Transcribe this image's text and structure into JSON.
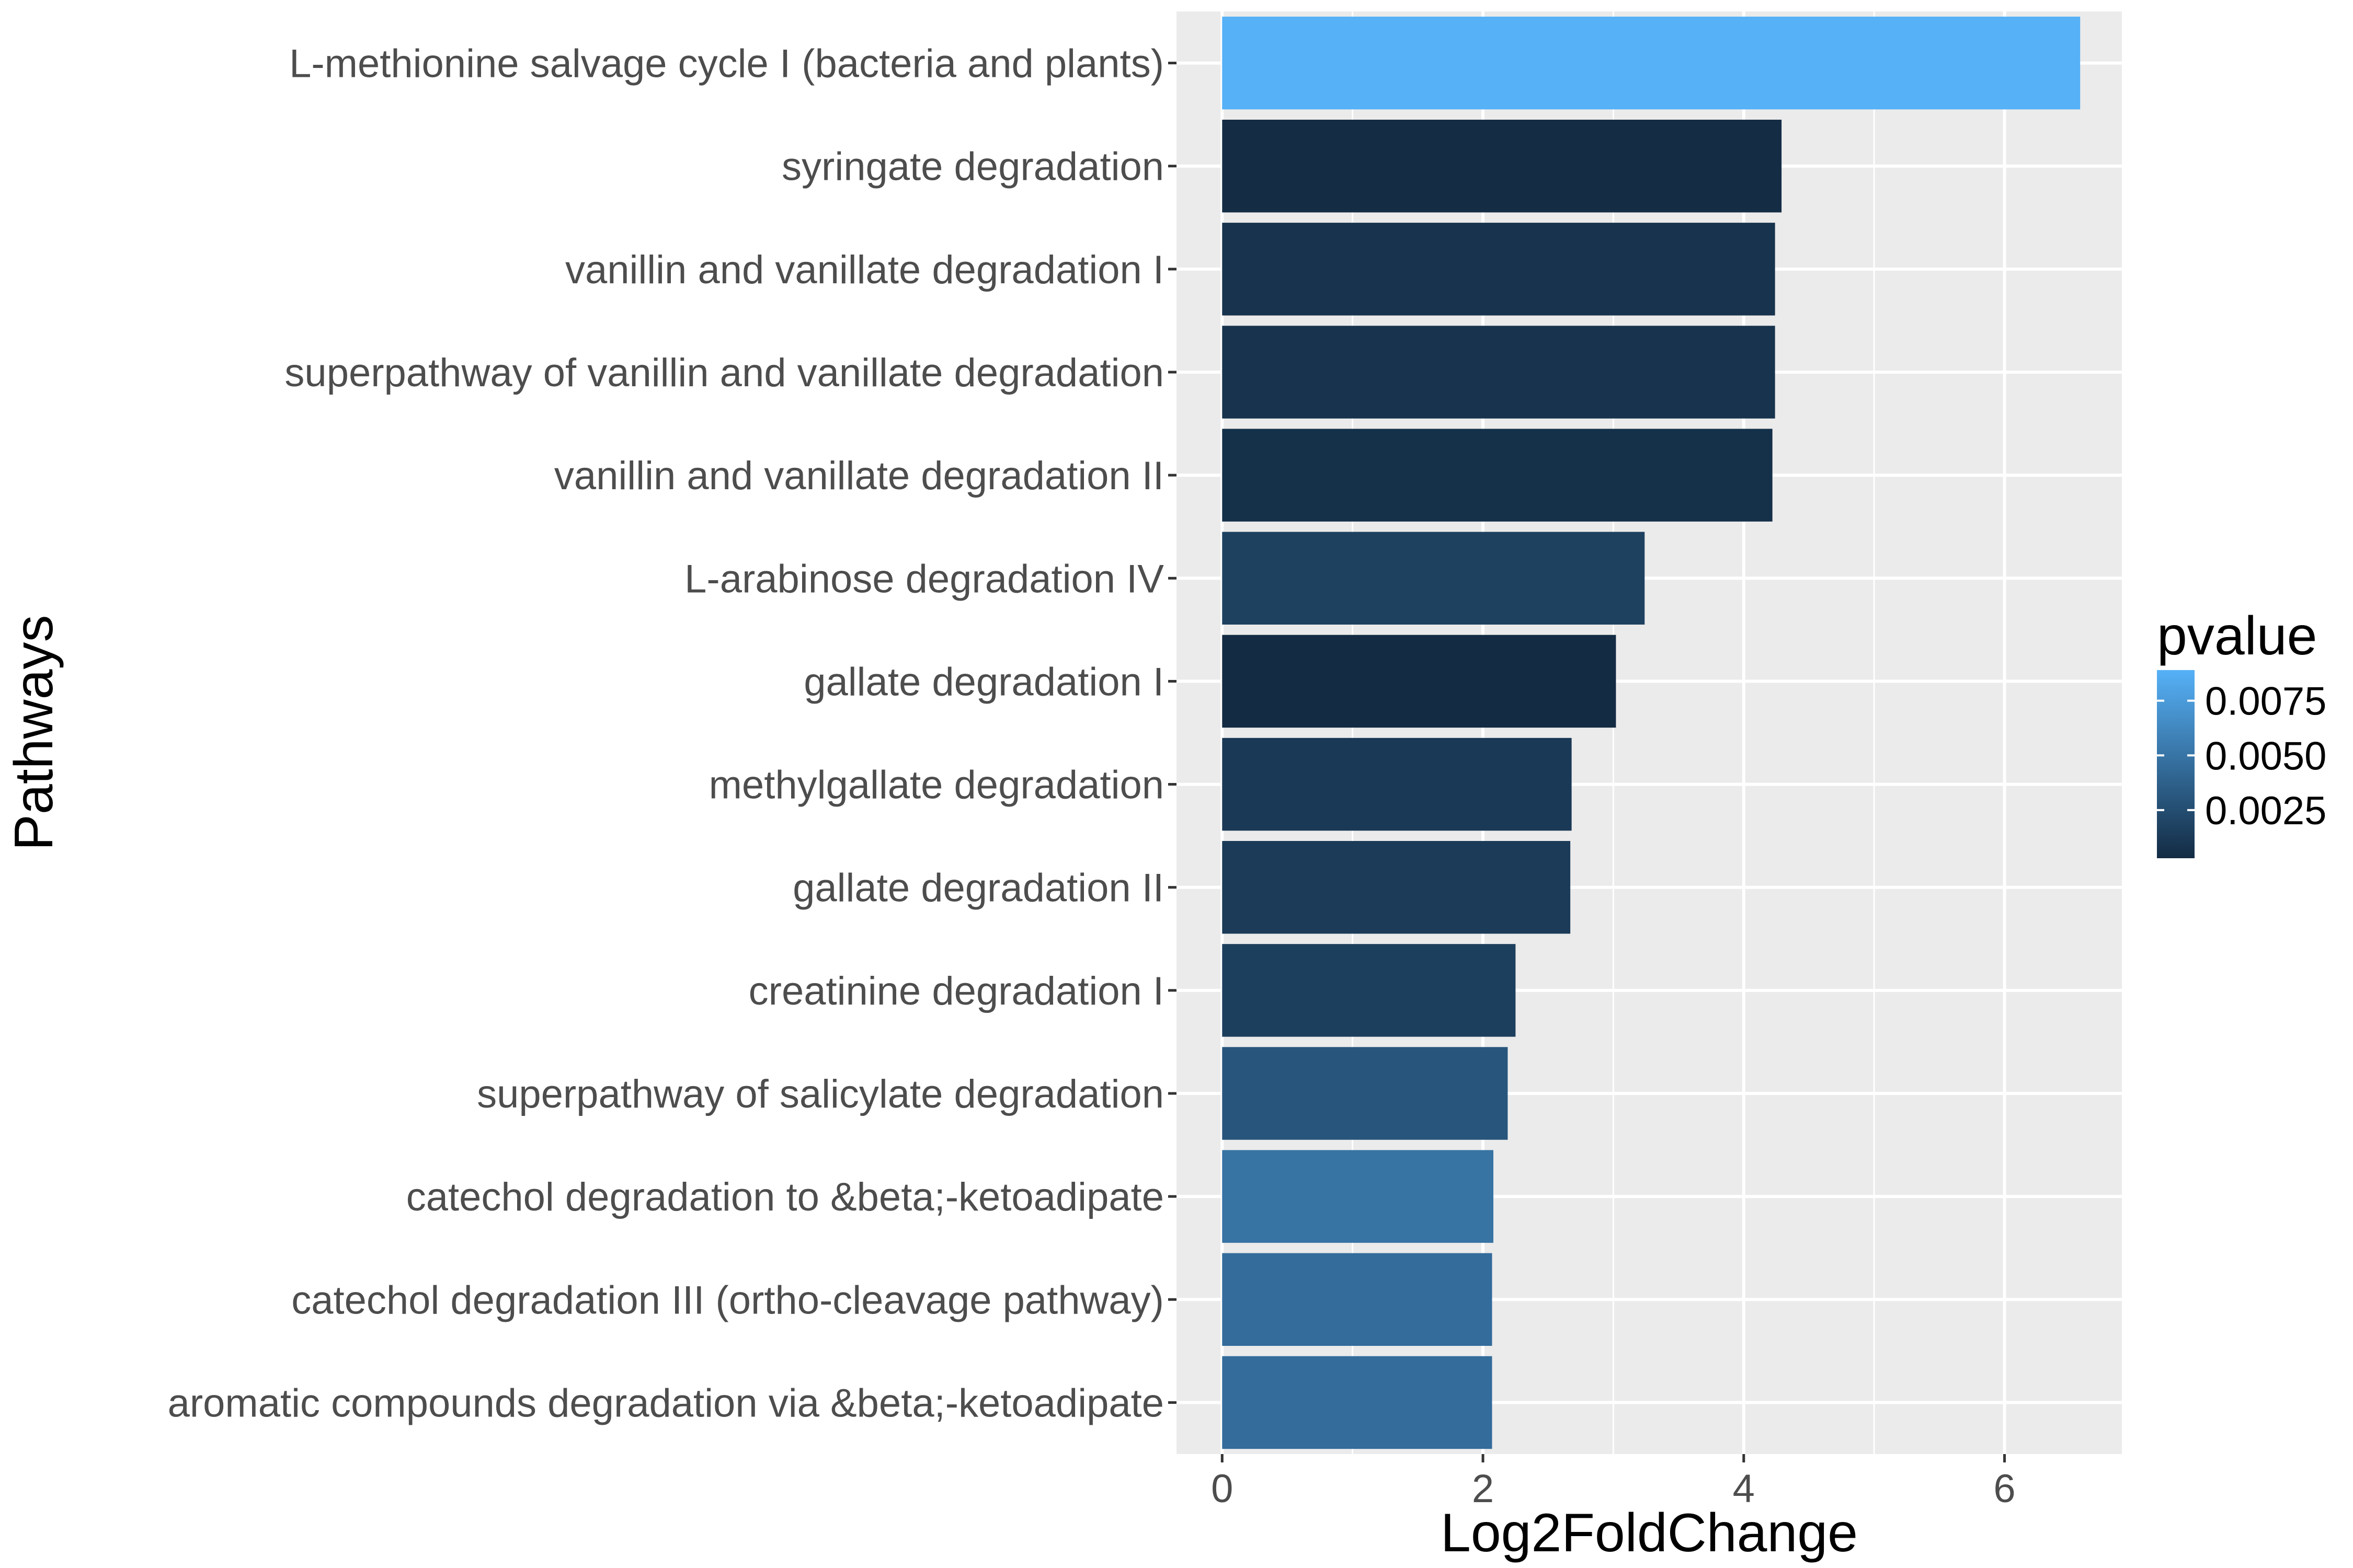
{
  "chart_data": {
    "type": "bar",
    "orientation": "horizontal",
    "xlabel": "Log2FoldChange",
    "ylabel": "Pathways",
    "xlim": [
      -0.35,
      6.9
    ],
    "xticks": [
      0,
      2,
      4,
      6
    ],
    "grid": true,
    "legend_position": "right",
    "categories": [
      "L-methionine salvage cycle I (bacteria and plants)",
      "syringate degradation",
      "vanillin and vanillate degradation I",
      "superpathway of vanillin and vanillate degradation",
      "vanillin and vanillate degradation II",
      "L-arabinose degradation IV",
      "gallate degradation I",
      "methylgallate degradation",
      "gallate degradation II",
      "creatinine degradation I",
      "superpathway of salicylate degradation",
      "catechol degradation to &beta;-ketoadipate",
      "catechol degradation III (ortho-cleavage pathway)",
      "aromatic compounds degradation via &beta;-ketoadipate"
    ],
    "values": [
      6.58,
      4.29,
      4.24,
      4.24,
      4.22,
      3.24,
      3.02,
      2.68,
      2.67,
      2.25,
      2.19,
      2.08,
      2.07,
      2.07
    ],
    "pvalues": [
      0.0089,
      0.0004,
      0.0008,
      0.0008,
      0.0006,
      0.0017,
      0.0003,
      0.0012,
      0.0013,
      0.0016,
      0.003,
      0.0049,
      0.0045,
      0.0045
    ],
    "color_legend": {
      "title": "pvalue",
      "tick_values": [
        0.0075,
        0.005,
        0.0025
      ],
      "tick_labels": [
        "0.0075",
        "0.0050",
        "0.0025"
      ],
      "range": [
        0.0003,
        0.0089
      ],
      "low_color": "#132B43",
      "high_color": "#56B1F7"
    },
    "colors": {
      "panel_background": "#EBEBEB",
      "grid_major": "#FFFFFF",
      "tick_text": "#4D4D4D",
      "tick_mark": "#333333"
    }
  }
}
